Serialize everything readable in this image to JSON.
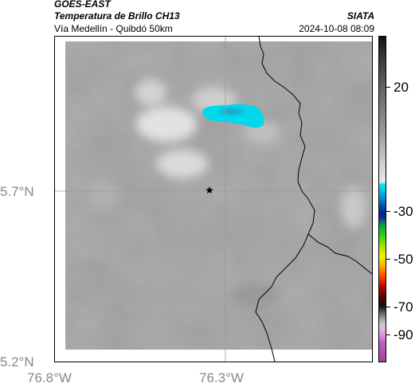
{
  "header": {
    "satellite": "GOES-EAST",
    "product": "Temperatura de Brillo CH13",
    "region": "Vía Medellín - Quibdó 50km",
    "agency": "SIATA",
    "datetime": "2024-10-08 08:09"
  },
  "map": {
    "lat_ticks": [
      "5.7°N",
      "5.2°N"
    ],
    "lon_ticks": [
      "76.8°W",
      "76.3°W"
    ],
    "marker": "star-icon",
    "colors": {
      "cloud_cold": "#00d8ec",
      "cloud_core": "#1aa4c8",
      "border": "#000000",
      "gridline": "#9a9a9a"
    }
  },
  "colorbar": {
    "labels": [
      "20",
      "-30",
      "-50",
      "-70",
      "-90"
    ]
  }
}
